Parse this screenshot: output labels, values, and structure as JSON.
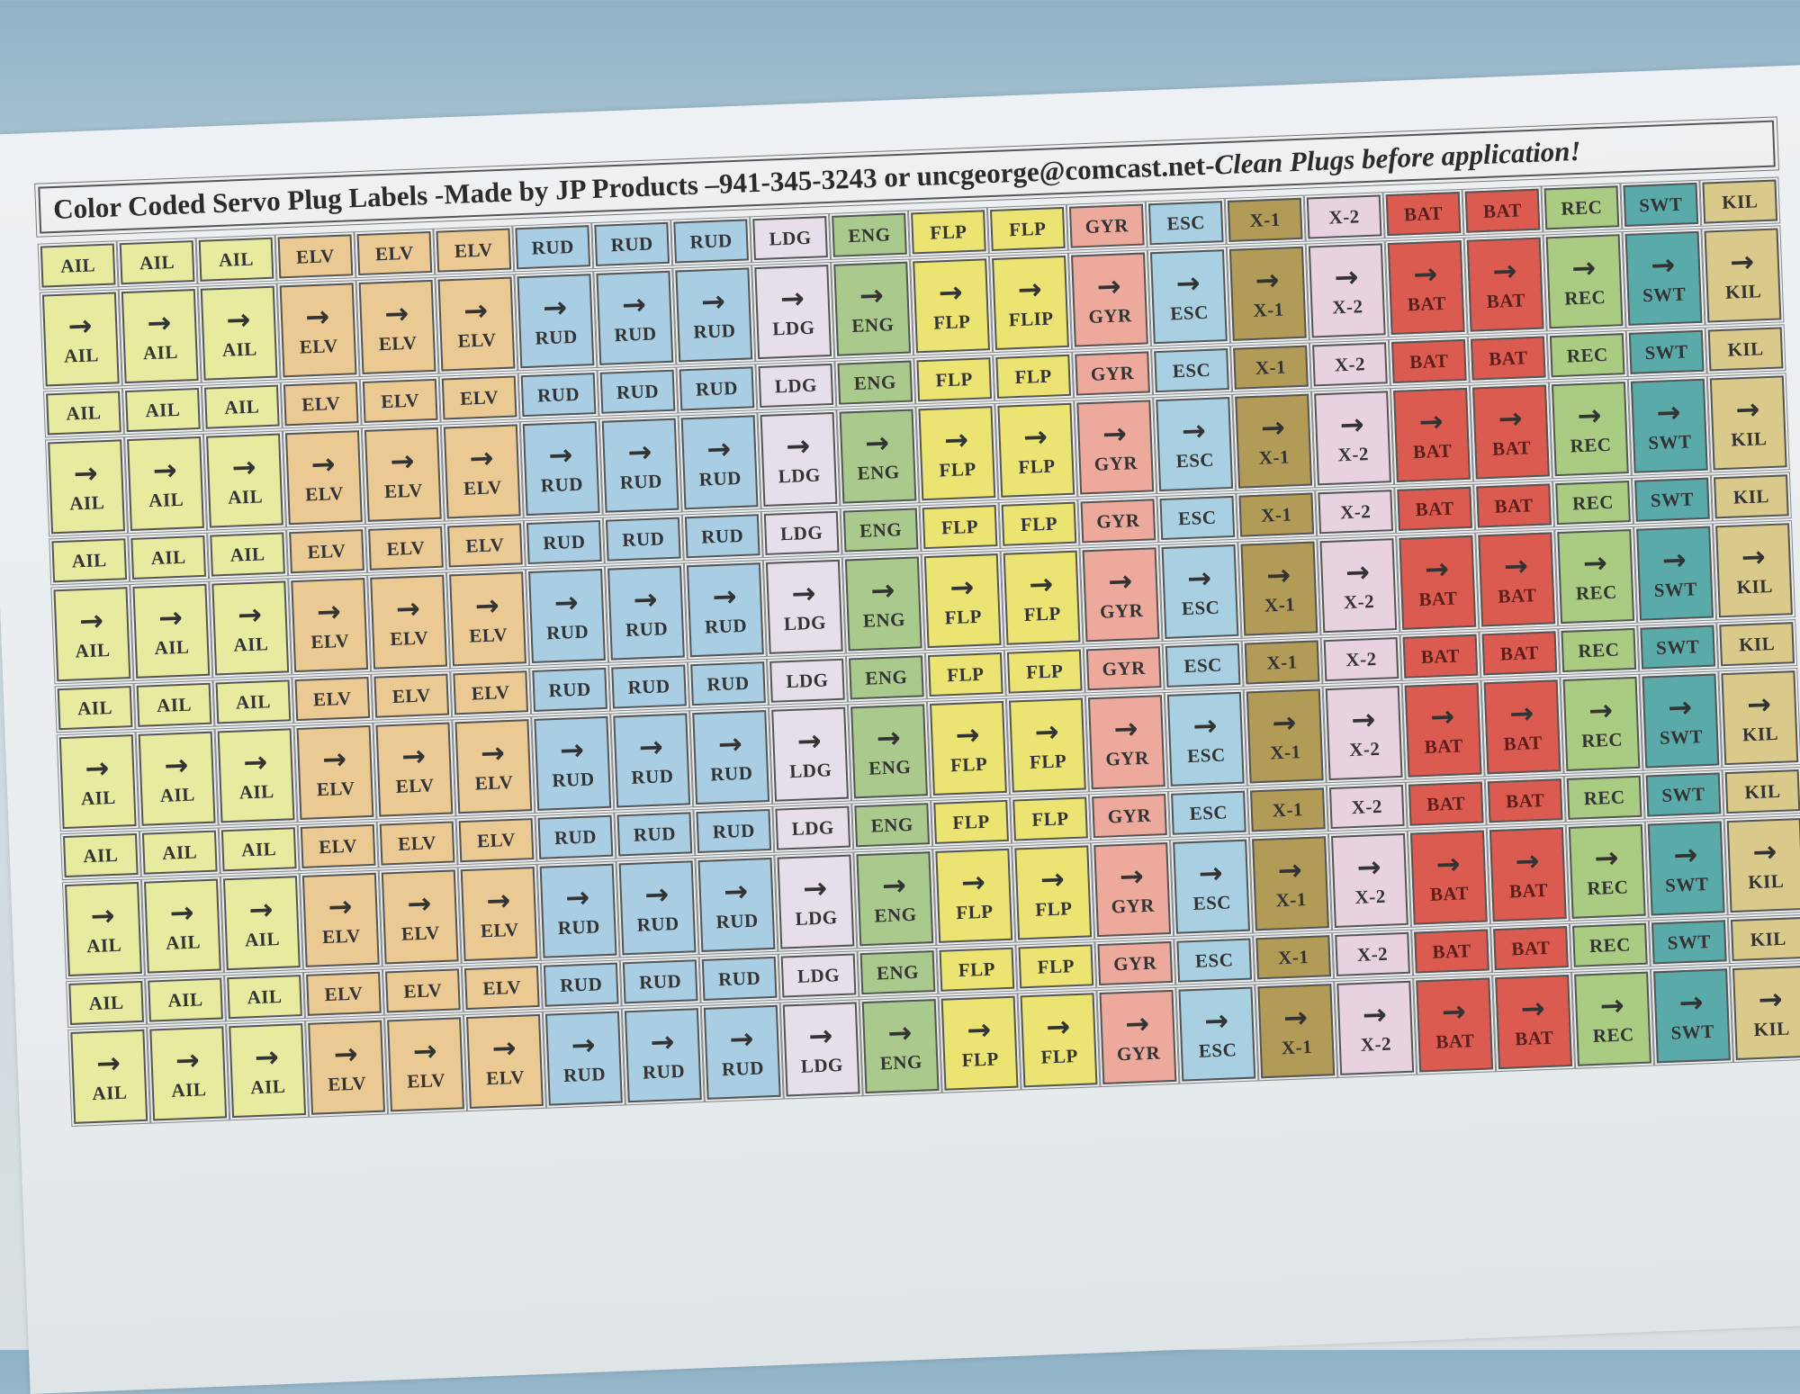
{
  "title": {
    "main": "Color Coded Servo Plug Labels -Made by JP Products –941-345-3243 or uncgeorge@comcast.net-",
    "italic": "Clean Plugs before application!"
  },
  "columns": [
    {
      "label": "AIL",
      "color": "#e6eba0"
    },
    {
      "label": "AIL",
      "color": "#e6eba0"
    },
    {
      "label": "AIL",
      "color": "#e6eba0"
    },
    {
      "label": "ELV",
      "color": "#ebc993"
    },
    {
      "label": "ELV",
      "color": "#ebc993"
    },
    {
      "label": "ELV",
      "color": "#ebc993"
    },
    {
      "label": "RUD",
      "color": "#a9cde2"
    },
    {
      "label": "RUD",
      "color": "#a9cde2"
    },
    {
      "label": "RUD",
      "color": "#a9cde2"
    },
    {
      "label": "LDG",
      "color": "#e6dee8"
    },
    {
      "label": "ENG",
      "color": "#aac98c"
    },
    {
      "label": "FLP",
      "color": "#ebe472"
    },
    {
      "label": "FLP",
      "color": "#ebe472"
    },
    {
      "label": "GYR",
      "color": "#eca99c"
    },
    {
      "label": "ESC",
      "color": "#a9d0e2"
    },
    {
      "label": "X-1",
      "color": "#b19b57"
    },
    {
      "label": "X-2",
      "color": "#e9d2e0"
    },
    {
      "label": "BAT",
      "color": "#dc5b50"
    },
    {
      "label": "BAT",
      "color": "#dc5b50"
    },
    {
      "label": "REC",
      "color": "#a9cc82"
    },
    {
      "label": "SWT",
      "color": "#5aaaa9"
    },
    {
      "label": "KIL",
      "color": "#d9c98a"
    }
  ],
  "row_pairs": 6,
  "tall_overrides": [
    {
      "pair": 0,
      "col": 12,
      "label": "FLIP"
    }
  ],
  "arrow_icon": "arrow-right-icon"
}
